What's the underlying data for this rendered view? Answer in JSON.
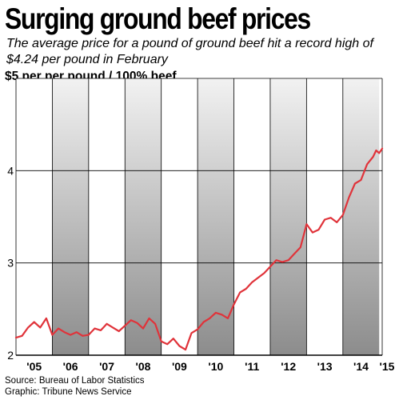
{
  "header": {
    "title": "Surging ground beef prices",
    "subtitle": "The average price for a pound of ground beef hit a record high of $4.24 per pound in February"
  },
  "footer": {
    "source": "Source: Bureau of Labor Statistics",
    "credit": "Graphic: Tribune News Service"
  },
  "colors": {
    "line": "#e0333a",
    "band_dark": "#8c8c8c",
    "band_light": "#f2f2f2",
    "grid": "#000000"
  },
  "chart_data": {
    "type": "line",
    "title": "Surging ground beef prices",
    "ylabel": "$5 per per pound / 100% beef",
    "xlabel": "",
    "ylim": [
      2,
      5
    ],
    "y_ticks": [
      2,
      3,
      4
    ],
    "x_tick_labels": [
      "'05",
      "'06",
      "'07",
      "'08",
      "'09",
      "'10",
      "'11",
      "'12",
      "'13",
      "'14",
      "'15"
    ],
    "x_range": [
      "2005-01",
      "2015-02"
    ],
    "alternate_year_shading": true,
    "grid": "horizontal",
    "series": [
      {
        "name": "",
        "points": [
          [
            "2005-01",
            2.19
          ],
          [
            "2005-03",
            2.21
          ],
          [
            "2005-05",
            2.3
          ],
          [
            "2005-07",
            2.36
          ],
          [
            "2005-09",
            2.3
          ],
          [
            "2005-11",
            2.4
          ],
          [
            "2006-01",
            2.22
          ],
          [
            "2006-03",
            2.29
          ],
          [
            "2006-05",
            2.25
          ],
          [
            "2006-07",
            2.22
          ],
          [
            "2006-09",
            2.25
          ],
          [
            "2006-11",
            2.21
          ],
          [
            "2007-01",
            2.22
          ],
          [
            "2007-03",
            2.29
          ],
          [
            "2007-05",
            2.27
          ],
          [
            "2007-07",
            2.34
          ],
          [
            "2007-09",
            2.3
          ],
          [
            "2007-11",
            2.26
          ],
          [
            "2008-01",
            2.32
          ],
          [
            "2008-03",
            2.38
          ],
          [
            "2008-05",
            2.35
          ],
          [
            "2008-07",
            2.29
          ],
          [
            "2008-09",
            2.4
          ],
          [
            "2008-11",
            2.34
          ],
          [
            "2009-01",
            2.15
          ],
          [
            "2009-03",
            2.12
          ],
          [
            "2009-05",
            2.18
          ],
          [
            "2009-07",
            2.1
          ],
          [
            "2009-09",
            2.06
          ],
          [
            "2009-11",
            2.24
          ],
          [
            "2010-01",
            2.28
          ],
          [
            "2010-03",
            2.36
          ],
          [
            "2010-05",
            2.4
          ],
          [
            "2010-07",
            2.46
          ],
          [
            "2010-09",
            2.44
          ],
          [
            "2010-11",
            2.4
          ],
          [
            "2011-01",
            2.55
          ],
          [
            "2011-03",
            2.68
          ],
          [
            "2011-05",
            2.72
          ],
          [
            "2011-07",
            2.79
          ],
          [
            "2011-09",
            2.84
          ],
          [
            "2011-11",
            2.89
          ],
          [
            "2012-01",
            2.96
          ],
          [
            "2012-03",
            3.03
          ],
          [
            "2012-05",
            3.01
          ],
          [
            "2012-07",
            3.03
          ],
          [
            "2012-09",
            3.1
          ],
          [
            "2012-11",
            3.17
          ],
          [
            "2013-01",
            3.42
          ],
          [
            "2013-03",
            3.33
          ],
          [
            "2013-05",
            3.36
          ],
          [
            "2013-07",
            3.47
          ],
          [
            "2013-09",
            3.49
          ],
          [
            "2013-11",
            3.44
          ],
          [
            "2014-01",
            3.52
          ],
          [
            "2014-03",
            3.71
          ],
          [
            "2014-05",
            3.86
          ],
          [
            "2014-07",
            3.9
          ],
          [
            "2014-09",
            4.07
          ],
          [
            "2014-11",
            4.15
          ],
          [
            "2014-12",
            4.22
          ],
          [
            "2015-01",
            4.19
          ],
          [
            "2015-02",
            4.24
          ]
        ]
      }
    ]
  }
}
